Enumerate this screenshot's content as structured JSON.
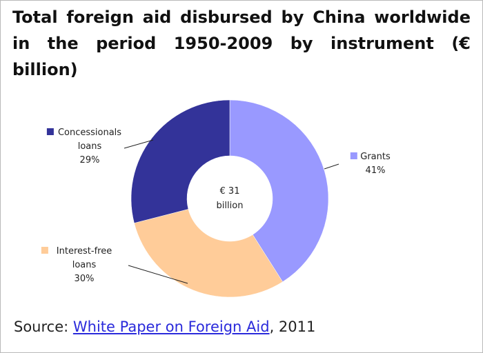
{
  "chart_data": {
    "type": "pie",
    "variant": "donut",
    "title": "Total foreign aid disbursed by China worldwide in the period 1950-2009 by instrument (€ billion)",
    "center_label": [
      "€ 31",
      "billion"
    ],
    "slices": [
      {
        "name": "Grants",
        "value": 41,
        "value_label": "41%",
        "color": "#9999ff",
        "label_lines": [
          "Grants"
        ]
      },
      {
        "name": "Interest-free loans",
        "value": 30,
        "value_label": "30%",
        "color": "#ffcc99",
        "label_lines": [
          "Interest-free",
          "loans"
        ]
      },
      {
        "name": "Concessionals loans",
        "value": 29,
        "value_label": "29%",
        "color": "#333399",
        "label_lines": [
          "Concessionals",
          "loans"
        ]
      }
    ]
  },
  "source": {
    "prefix": "Source: ",
    "link_text": "White Paper on Foreign Aid",
    "suffix": ", 2011"
  }
}
